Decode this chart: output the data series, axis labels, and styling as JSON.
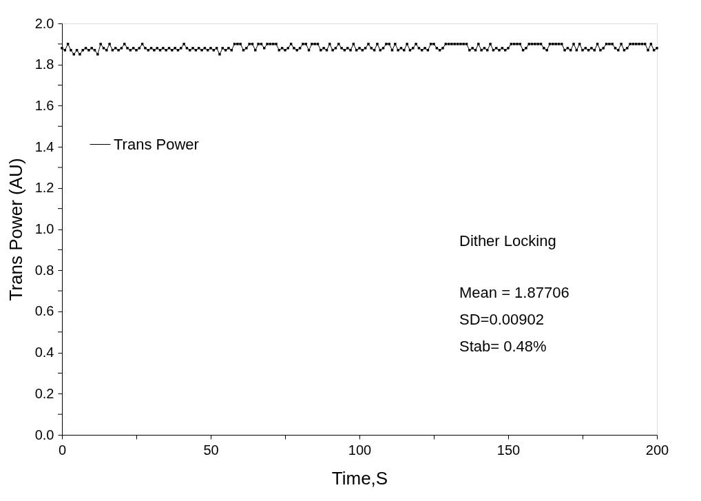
{
  "chart_data": {
    "type": "line",
    "xlabel": "Time,S",
    "ylabel": "Trans Power (AU)",
    "x": [
      0,
      1,
      2,
      3,
      4,
      5,
      6,
      7,
      8,
      9,
      10,
      11,
      12,
      13,
      14,
      15,
      16,
      17,
      18,
      19,
      20,
      21,
      22,
      23,
      24,
      25,
      26,
      27,
      28,
      29,
      30,
      31,
      32,
      33,
      34,
      35,
      36,
      37,
      38,
      39,
      40,
      41,
      42,
      43,
      44,
      45,
      46,
      47,
      48,
      49,
      50,
      51,
      52,
      53,
      54,
      55,
      56,
      57,
      58,
      59,
      60,
      61,
      62,
      63,
      64,
      65,
      66,
      67,
      68,
      69,
      70,
      71,
      72,
      73,
      74,
      75,
      76,
      77,
      78,
      79,
      80,
      81,
      82,
      83,
      84,
      85,
      86,
      87,
      88,
      89,
      90,
      91,
      92,
      93,
      94,
      95,
      96,
      97,
      98,
      99,
      100,
      101,
      102,
      103,
      104,
      105,
      106,
      107,
      108,
      109,
      110,
      111,
      112,
      113,
      114,
      115,
      116,
      117,
      118,
      119,
      120,
      121,
      122,
      123,
      124,
      125,
      126,
      127,
      128,
      129,
      130,
      131,
      132,
      133,
      134,
      135,
      136,
      137,
      138,
      139,
      140,
      141,
      142,
      143,
      144,
      145,
      146,
      147,
      148,
      149,
      150,
      151,
      152,
      153,
      154,
      155,
      156,
      157,
      158,
      159,
      160,
      161,
      162,
      163,
      164,
      165,
      166,
      167,
      168,
      169,
      170,
      171,
      172,
      173,
      174,
      175,
      176,
      177,
      178,
      179,
      180,
      181,
      182,
      183,
      184,
      185,
      186,
      187,
      188,
      189,
      190,
      191,
      192,
      193,
      194,
      195,
      196,
      197,
      198,
      199,
      200
    ],
    "series": [
      {
        "name": "Trans Power",
        "color": "#000000",
        "values": [
          1.88,
          1.87,
          1.9,
          1.87,
          1.85,
          1.87,
          1.85,
          1.87,
          1.88,
          1.87,
          1.88,
          1.87,
          1.85,
          1.9,
          1.88,
          1.87,
          1.9,
          1.87,
          1.88,
          1.87,
          1.88,
          1.9,
          1.88,
          1.87,
          1.88,
          1.87,
          1.88,
          1.9,
          1.88,
          1.87,
          1.88,
          1.87,
          1.88,
          1.87,
          1.88,
          1.87,
          1.88,
          1.87,
          1.88,
          1.87,
          1.88,
          1.9,
          1.88,
          1.87,
          1.88,
          1.87,
          1.88,
          1.87,
          1.88,
          1.87,
          1.88,
          1.87,
          1.88,
          1.85,
          1.88,
          1.87,
          1.88,
          1.87,
          1.9,
          1.9,
          1.9,
          1.87,
          1.88,
          1.9,
          1.9,
          1.87,
          1.9,
          1.9,
          1.88,
          1.9,
          1.9,
          1.9,
          1.9,
          1.87,
          1.88,
          1.87,
          1.88,
          1.9,
          1.88,
          1.87,
          1.88,
          1.9,
          1.9,
          1.87,
          1.9,
          1.9,
          1.9,
          1.87,
          1.88,
          1.87,
          1.9,
          1.87,
          1.88,
          1.9,
          1.88,
          1.87,
          1.88,
          1.87,
          1.9,
          1.87,
          1.88,
          1.87,
          1.88,
          1.9,
          1.88,
          1.87,
          1.9,
          1.87,
          1.88,
          1.9,
          1.9,
          1.87,
          1.9,
          1.87,
          1.88,
          1.87,
          1.9,
          1.87,
          1.88,
          1.9,
          1.88,
          1.87,
          1.88,
          1.87,
          1.9,
          1.9,
          1.88,
          1.87,
          1.88,
          1.9,
          1.9,
          1.9,
          1.9,
          1.9,
          1.9,
          1.9,
          1.9,
          1.87,
          1.88,
          1.87,
          1.9,
          1.87,
          1.88,
          1.87,
          1.9,
          1.87,
          1.88,
          1.87,
          1.88,
          1.87,
          1.88,
          1.9,
          1.9,
          1.9,
          1.9,
          1.87,
          1.88,
          1.9,
          1.9,
          1.9,
          1.9,
          1.9,
          1.88,
          1.87,
          1.9,
          1.9,
          1.9,
          1.9,
          1.9,
          1.87,
          1.88,
          1.87,
          1.9,
          1.87,
          1.9,
          1.87,
          1.88,
          1.87,
          1.88,
          1.87,
          1.9,
          1.87,
          1.88,
          1.9,
          1.9,
          1.9,
          1.88,
          1.87,
          1.9,
          1.87,
          1.88,
          1.9,
          1.9,
          1.9,
          1.9,
          1.9,
          1.9,
          1.87,
          1.9,
          1.87,
          1.88
        ]
      }
    ],
    "xlim": [
      0,
      200
    ],
    "xticks": [
      0,
      {
        "value": 25,
        "label": null
      },
      50,
      {
        "value": 75,
        "label": null
      },
      100,
      {
        "value": 125,
        "label": null
      },
      150,
      {
        "value": 175,
        "label": null
      },
      200
    ],
    "ylim": [
      0,
      2
    ],
    "yticks": [
      {
        "value": 0,
        "label": "0.0"
      },
      {
        "value": 0.1,
        "label": null
      },
      0.2,
      {
        "value": 0.3,
        "label": null
      },
      0.4,
      {
        "value": 0.5,
        "label": null
      },
      0.6,
      {
        "value": 0.7,
        "label": null
      },
      0.8,
      {
        "value": 0.9,
        "label": null
      },
      {
        "value": 1,
        "label": "1.0"
      },
      {
        "value": 1.1,
        "label": null
      },
      1.2,
      {
        "value": 1.3,
        "label": null
      },
      1.4,
      {
        "value": 1.5,
        "label": null
      },
      1.6,
      {
        "value": 1.7,
        "label": null
      },
      1.8,
      {
        "value": 1.9,
        "label": null
      },
      {
        "value": 2,
        "label": "2.0"
      }
    ],
    "annotations": [
      "Dither Locking",
      "Mean = 1.87706",
      "SD=0.00902",
      "Stab= 0.48%"
    ],
    "legend": "top left",
    "grid": false,
    "marker": "square",
    "line_style": "solid"
  }
}
